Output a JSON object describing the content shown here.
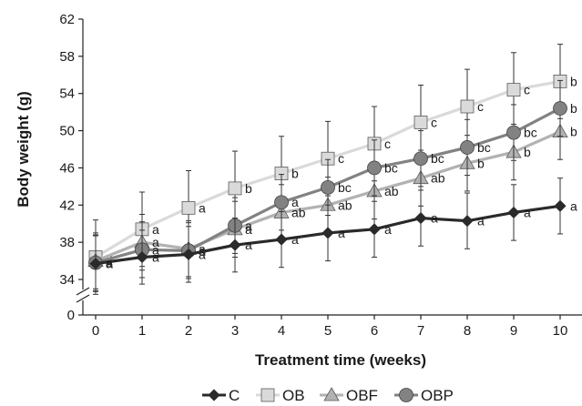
{
  "chart_data": {
    "type": "line",
    "xlabel": "Treatment time (weeks)",
    "ylabel": "Body weight (g)",
    "x": [
      0,
      1,
      2,
      3,
      4,
      5,
      6,
      7,
      8,
      9,
      10
    ],
    "xlim": [
      0,
      10
    ],
    "ylim": [
      34,
      62
    ],
    "y_axis_break": true,
    "y_ticks": [
      0,
      34,
      38,
      42,
      46,
      50,
      54,
      58,
      62
    ],
    "grid": false,
    "legend_position": "bottom",
    "series": [
      {
        "name": "C",
        "color": "#2a2a2a",
        "marker": "diamond",
        "values": [
          35.7,
          36.4,
          36.7,
          37.7,
          38.3,
          39.0,
          39.4,
          40.6,
          40.3,
          41.2,
          41.9
        ],
        "error": [
          3.0,
          2.9,
          3.0,
          2.9,
          3.0,
          3.0,
          3.0,
          3.0,
          3.0,
          3.0,
          3.0
        ],
        "labels": [
          "a",
          "a",
          "a",
          "a",
          "a",
          "a",
          "a",
          "a",
          "a",
          "a",
          "a"
        ]
      },
      {
        "name": "OB",
        "color": "#dadada",
        "marker": "square",
        "values": [
          36.4,
          39.4,
          41.7,
          43.8,
          45.4,
          47.0,
          48.6,
          50.9,
          52.6,
          54.4,
          55.3
        ],
        "error": [
          4.0,
          4.0,
          4.0,
          4.0,
          4.0,
          4.0,
          4.0,
          4.0,
          4.0,
          4.0,
          4.0
        ],
        "labels": [
          "a",
          "a",
          "a",
          "b",
          "b",
          "c",
          "c",
          "c",
          "c",
          "c",
          "b"
        ]
      },
      {
        "name": "OBF",
        "color": "#b2b2b2",
        "marker": "triangle",
        "values": [
          36.0,
          38.0,
          37.3,
          39.4,
          41.2,
          42.0,
          43.5,
          44.9,
          46.5,
          47.7,
          49.9
        ],
        "error": [
          3.0,
          3.0,
          3.0,
          3.0,
          3.0,
          3.0,
          3.0,
          3.0,
          3.0,
          3.0,
          3.0
        ],
        "labels": [
          "a",
          "a",
          "a",
          "a",
          "ab",
          "ab",
          "ab",
          "ab",
          "b",
          "b",
          "b"
        ]
      },
      {
        "name": "OBP",
        "color": "#828282",
        "marker": "circle",
        "values": [
          35.8,
          37.2,
          37.1,
          39.8,
          42.3,
          43.9,
          46.0,
          47.0,
          48.2,
          49.8,
          52.4
        ],
        "error": [
          3.0,
          3.0,
          3.0,
          3.0,
          3.0,
          3.0,
          3.0,
          3.0,
          3.0,
          3.0,
          3.0
        ],
        "labels": [
          "a",
          "a",
          "a",
          "a",
          "a",
          "bc",
          "bc",
          "bc",
          "bc",
          "bc",
          "b"
        ]
      }
    ]
  }
}
